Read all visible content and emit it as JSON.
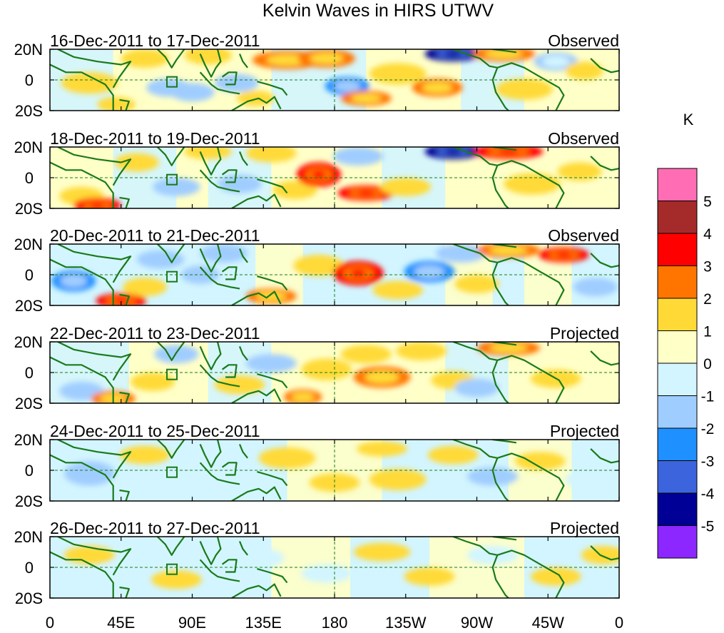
{
  "chart_data": {
    "type": "heatmap",
    "title": "Kelvin Waves in HIRS UTWV",
    "unit": "K",
    "x_ticks": [
      "0",
      "45E",
      "90E",
      "135E",
      "180",
      "135W",
      "90W",
      "45W",
      "0"
    ],
    "y_ticks": [
      "20N",
      "0",
      "20S"
    ],
    "xlim": [
      0,
      360
    ],
    "ylim": [
      -20,
      20
    ],
    "colorbar": {
      "labels": [
        "5",
        "4",
        "3",
        "2",
        "1",
        "0",
        "-1",
        "-2",
        "-3",
        "-4",
        "-5"
      ],
      "colors": [
        "#ff6eb4",
        "#a52a2a",
        "#ff0000",
        "#ff7500",
        "#ffda37",
        "#ffffc8",
        "#d2f5ff",
        "#a0cdff",
        "#1e90ff",
        "#3c64dc",
        "#000096",
        "#8c28ff"
      ]
    },
    "panels": [
      {
        "date": "16-Dec-2011 to 17-Dec-2011",
        "type": "Observed"
      },
      {
        "date": "18-Dec-2011 to 19-Dec-2011",
        "type": "Observed"
      },
      {
        "date": "20-Dec-2011 to 21-Dec-2011",
        "type": "Observed"
      },
      {
        "date": "22-Dec-2011 to 23-Dec-2011",
        "type": "Projected"
      },
      {
        "date": "24-Dec-2011 to 25-Dec-2011",
        "type": "Projected"
      },
      {
        "date": "26-Dec-2011 to 27-Dec-2011",
        "type": "Projected"
      }
    ]
  }
}
